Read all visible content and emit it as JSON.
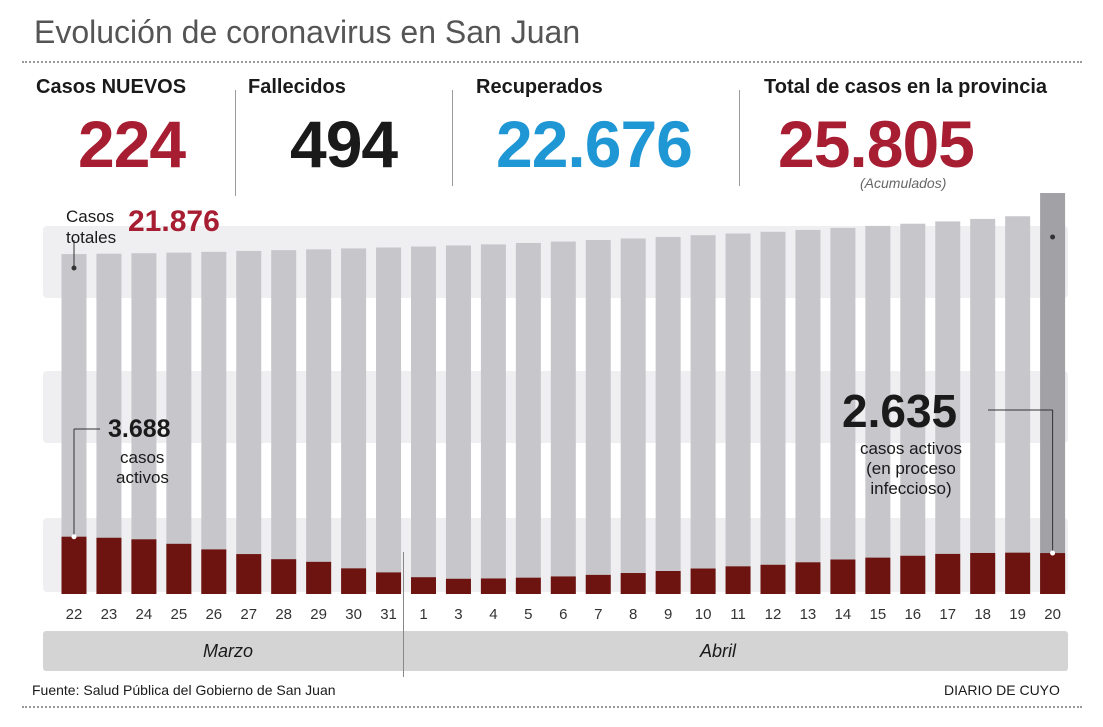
{
  "title": "Evolución de coronavirus en San Juan",
  "stats": {
    "nuevos": {
      "label": "Casos NUEVOS",
      "value": "224",
      "color": "#a71d31"
    },
    "fallecidos": {
      "label": "Fallecidos",
      "value": "494",
      "color": "#1a1a1a"
    },
    "recuperados": {
      "label": "Recuperados",
      "value": "22.676",
      "color": "#1f97d4"
    },
    "total": {
      "label": "Total de casos en la provincia",
      "value": "25.805",
      "note": "(Acumulados)",
      "color": "#a71d31"
    }
  },
  "annotations": {
    "casos_totales_label_1": "Casos",
    "casos_totales_label_2": "totales",
    "casos_totales_value": "21.876",
    "activos_start_value": "3.688",
    "activos_start_line1": "casos",
    "activos_start_line2": "activos",
    "activos_end_value": "2.635",
    "activos_end_line1": "casos activos",
    "activos_end_line2": "(en proceso",
    "activos_end_line3": "infeccioso)"
  },
  "months": {
    "marzo": "Marzo",
    "abril": "Abril"
  },
  "footer": {
    "source": "Fuente: Salud Pública del Gobierno de San Juan",
    "brand": "DIARIO DE CUYO"
  },
  "colors": {
    "total_bar": "#c7c6cb",
    "total_bar_last": "#a2a1a6",
    "active_bar": "#6e1410",
    "band": "#efeff1"
  },
  "chart_data": {
    "type": "bar",
    "categories": [
      "22",
      "23",
      "24",
      "25",
      "26",
      "27",
      "28",
      "29",
      "30",
      "31",
      "1",
      "3",
      "4",
      "5",
      "6",
      "7",
      "8",
      "9",
      "10",
      "11",
      "12",
      "13",
      "14",
      "15",
      "16",
      "17",
      "18",
      "19",
      "20"
    ],
    "series": [
      {
        "name": "Casos totales",
        "values": [
          21876,
          21900,
          21930,
          21970,
          22020,
          22080,
          22130,
          22180,
          22240,
          22300,
          22360,
          22430,
          22500,
          22590,
          22680,
          22780,
          22880,
          22980,
          23090,
          23200,
          23310,
          23430,
          23560,
          23690,
          23830,
          23980,
          24140,
          24310,
          25805
        ]
      },
      {
        "name": "casos activos",
        "values": [
          3688,
          3620,
          3520,
          3230,
          2870,
          2570,
          2240,
          2070,
          1650,
          1390,
          1080,
          980,
          1000,
          1050,
          1130,
          1230,
          1350,
          1480,
          1640,
          1780,
          1880,
          2040,
          2220,
          2340,
          2460,
          2580,
          2640,
          2660,
          2635
        ]
      }
    ],
    "ylim": [
      0,
      26000
    ]
  }
}
